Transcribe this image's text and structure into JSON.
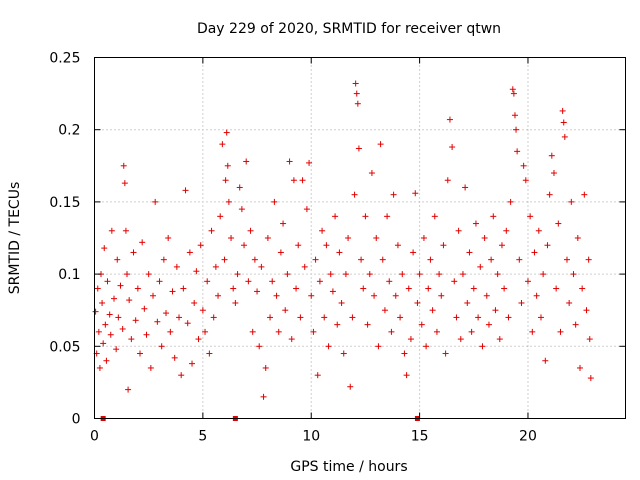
{
  "chart_data": {
    "type": "scatter",
    "title": "Day 229 of 2020, SRMTID for receiver qtwn",
    "xlabel": "GPS time / hours",
    "ylabel": "SRMTID / TECUs",
    "xlim": [
      0,
      24.5
    ],
    "ylim": [
      0,
      0.25
    ],
    "x_ticks": [
      0,
      5,
      10,
      15,
      20
    ],
    "x_tick_labels": [
      "0",
      "5",
      "10",
      "15",
      "20"
    ],
    "y_ticks": [
      0,
      0.05,
      0.1,
      0.15,
      0.2,
      0.25
    ],
    "y_tick_labels": [
      "0",
      "0.05",
      "0.1",
      "0.15",
      "0.2",
      "0.25"
    ],
    "grid": true,
    "marker": "plus",
    "color": "#e00000",
    "series": [
      {
        "name": "SRMTID",
        "points": [
          [
            0.05,
            0.074
          ],
          [
            0.1,
            0.045
          ],
          [
            0.15,
            0.09
          ],
          [
            0.2,
            0.06
          ],
          [
            0.25,
            0.035
          ],
          [
            0.3,
            0.1
          ],
          [
            0.35,
            0.08
          ],
          [
            0.4,
            0.052
          ],
          [
            0.45,
            0.118
          ],
          [
            0.5,
            0.065
          ],
          [
            0.55,
            0.04
          ],
          [
            0.6,
            0.095
          ],
          [
            0.7,
            0.072
          ],
          [
            0.75,
            0.058
          ],
          [
            0.8,
            0.13
          ],
          [
            0.9,
            0.083
          ],
          [
            1.0,
            0.048
          ],
          [
            1.05,
            0.11
          ],
          [
            1.1,
            0.07
          ],
          [
            1.2,
            0.092
          ],
          [
            1.3,
            0.062
          ],
          [
            1.35,
            0.175
          ],
          [
            1.4,
            0.163
          ],
          [
            1.45,
            0.13
          ],
          [
            1.5,
            0.1
          ],
          [
            1.55,
            0.02
          ],
          [
            1.6,
            0.082
          ],
          [
            1.7,
            0.055
          ],
          [
            1.8,
            0.115
          ],
          [
            1.9,
            0.068
          ],
          [
            2.0,
            0.09
          ],
          [
            2.1,
            0.045
          ],
          [
            2.2,
            0.122
          ],
          [
            2.3,
            0.076
          ],
          [
            2.4,
            0.058
          ],
          [
            2.5,
            0.1
          ],
          [
            2.6,
            0.035
          ],
          [
            2.7,
            0.085
          ],
          [
            2.8,
            0.15
          ],
          [
            2.9,
            0.067
          ],
          [
            3.0,
            0.095
          ],
          [
            3.1,
            0.05
          ],
          [
            3.2,
            0.11
          ],
          [
            3.3,
            0.073
          ],
          [
            3.4,
            0.125
          ],
          [
            3.5,
            0.06
          ],
          [
            3.6,
            0.088
          ],
          [
            3.7,
            0.042
          ],
          [
            3.8,
            0.105
          ],
          [
            3.9,
            0.07
          ],
          [
            4.0,
            0.03
          ],
          [
            4.1,
            0.09
          ],
          [
            4.2,
            0.158
          ],
          [
            4.3,
            0.066
          ],
          [
            4.4,
            0.115
          ],
          [
            4.5,
            0.038
          ],
          [
            4.6,
            0.08
          ],
          [
            4.7,
            0.102
          ],
          [
            4.8,
            0.055
          ],
          [
            4.9,
            0.12
          ],
          [
            5.0,
            0.075
          ],
          [
            5.1,
            0.06
          ],
          [
            5.2,
            0.095
          ],
          [
            5.3,
            0.045
          ],
          [
            5.4,
            0.13
          ],
          [
            5.5,
            0.07
          ],
          [
            5.6,
            0.105
          ],
          [
            5.7,
            0.085
          ],
          [
            5.8,
            0.14
          ],
          [
            5.9,
            0.19
          ],
          [
            6.0,
            0.11
          ],
          [
            6.05,
            0.165
          ],
          [
            6.1,
            0.198
          ],
          [
            6.15,
            0.175
          ],
          [
            6.2,
            0.15
          ],
          [
            6.3,
            0.125
          ],
          [
            6.4,
            0.09
          ],
          [
            6.5,
            0.08
          ],
          [
            6.6,
            0.1
          ],
          [
            6.7,
            0.16
          ],
          [
            6.8,
            0.145
          ],
          [
            6.9,
            0.12
          ],
          [
            7.0,
            0.178
          ],
          [
            7.1,
            0.095
          ],
          [
            7.2,
            0.13
          ],
          [
            7.3,
            0.06
          ],
          [
            7.4,
            0.11
          ],
          [
            7.5,
            0.088
          ],
          [
            7.6,
            0.05
          ],
          [
            7.7,
            0.105
          ],
          [
            7.8,
            0.015
          ],
          [
            7.9,
            0.035
          ],
          [
            8.0,
            0.125
          ],
          [
            8.1,
            0.07
          ],
          [
            8.2,
            0.095
          ],
          [
            8.3,
            0.15
          ],
          [
            8.4,
            0.085
          ],
          [
            8.5,
            0.06
          ],
          [
            8.6,
            0.115
          ],
          [
            8.7,
            0.135
          ],
          [
            8.8,
            0.075
          ],
          [
            8.9,
            0.1
          ],
          [
            9.0,
            0.178
          ],
          [
            9.1,
            0.055
          ],
          [
            9.2,
            0.165
          ],
          [
            9.3,
            0.09
          ],
          [
            9.4,
            0.12
          ],
          [
            9.5,
            0.07
          ],
          [
            9.6,
            0.165
          ],
          [
            9.7,
            0.105
          ],
          [
            9.8,
            0.145
          ],
          [
            9.9,
            0.177
          ],
          [
            10.0,
            0.085
          ],
          [
            10.1,
            0.06
          ],
          [
            10.2,
            0.11
          ],
          [
            10.3,
            0.03
          ],
          [
            10.4,
            0.095
          ],
          [
            10.5,
            0.13
          ],
          [
            10.6,
            0.07
          ],
          [
            10.7,
            0.12
          ],
          [
            10.8,
            0.05
          ],
          [
            10.9,
            0.1
          ],
          [
            11.0,
            0.088
          ],
          [
            11.1,
            0.14
          ],
          [
            11.2,
            0.065
          ],
          [
            11.3,
            0.115
          ],
          [
            11.4,
            0.08
          ],
          [
            11.5,
            0.045
          ],
          [
            11.6,
            0.1
          ],
          [
            11.7,
            0.125
          ],
          [
            11.8,
            0.022
          ],
          [
            11.9,
            0.07
          ],
          [
            12.0,
            0.155
          ],
          [
            12.05,
            0.232
          ],
          [
            12.1,
            0.225
          ],
          [
            12.15,
            0.218
          ],
          [
            12.2,
            0.187
          ],
          [
            12.3,
            0.11
          ],
          [
            12.4,
            0.09
          ],
          [
            12.5,
            0.14
          ],
          [
            12.6,
            0.065
          ],
          [
            12.7,
            0.1
          ],
          [
            12.8,
            0.17
          ],
          [
            12.9,
            0.085
          ],
          [
            13.0,
            0.125
          ],
          [
            13.1,
            0.05
          ],
          [
            13.2,
            0.19
          ],
          [
            13.3,
            0.11
          ],
          [
            13.4,
            0.075
          ],
          [
            13.5,
            0.14
          ],
          [
            13.6,
            0.095
          ],
          [
            13.7,
            0.06
          ],
          [
            13.8,
            0.155
          ],
          [
            13.9,
            0.085
          ],
          [
            14.0,
            0.12
          ],
          [
            14.1,
            0.07
          ],
          [
            14.2,
            0.1
          ],
          [
            14.3,
            0.045
          ],
          [
            14.4,
            0.03
          ],
          [
            14.5,
            0.09
          ],
          [
            14.6,
            0.055
          ],
          [
            14.7,
            0.115
          ],
          [
            14.8,
            0.156
          ],
          [
            14.9,
            0.08
          ],
          [
            15.0,
            0.1
          ],
          [
            15.1,
            0.065
          ],
          [
            15.2,
            0.125
          ],
          [
            15.3,
            0.05
          ],
          [
            15.4,
            0.09
          ],
          [
            15.5,
            0.11
          ],
          [
            15.6,
            0.075
          ],
          [
            15.7,
            0.14
          ],
          [
            15.8,
            0.06
          ],
          [
            15.9,
            0.1
          ],
          [
            16.0,
            0.085
          ],
          [
            16.1,
            0.12
          ],
          [
            16.2,
            0.045
          ],
          [
            16.3,
            0.165
          ],
          [
            16.4,
            0.207
          ],
          [
            16.5,
            0.188
          ],
          [
            16.6,
            0.095
          ],
          [
            16.7,
            0.07
          ],
          [
            16.8,
            0.13
          ],
          [
            16.9,
            0.055
          ],
          [
            17.0,
            0.1
          ],
          [
            17.1,
            0.16
          ],
          [
            17.2,
            0.08
          ],
          [
            17.3,
            0.115
          ],
          [
            17.4,
            0.06
          ],
          [
            17.5,
            0.09
          ],
          [
            17.6,
            0.135
          ],
          [
            17.7,
            0.07
          ],
          [
            17.8,
            0.105
          ],
          [
            17.9,
            0.05
          ],
          [
            18.0,
            0.125
          ],
          [
            18.1,
            0.085
          ],
          [
            18.2,
            0.065
          ],
          [
            18.3,
            0.11
          ],
          [
            18.4,
            0.14
          ],
          [
            18.5,
            0.075
          ],
          [
            18.6,
            0.1
          ],
          [
            18.7,
            0.055
          ],
          [
            18.8,
            0.12
          ],
          [
            18.9,
            0.09
          ],
          [
            19.0,
            0.13
          ],
          [
            19.1,
            0.07
          ],
          [
            19.2,
            0.15
          ],
          [
            19.3,
            0.228
          ],
          [
            19.35,
            0.225
          ],
          [
            19.4,
            0.21
          ],
          [
            19.45,
            0.2
          ],
          [
            19.5,
            0.185
          ],
          [
            19.6,
            0.11
          ],
          [
            19.7,
            0.08
          ],
          [
            19.8,
            0.175
          ],
          [
            19.9,
            0.165
          ],
          [
            20.0,
            0.095
          ],
          [
            20.1,
            0.14
          ],
          [
            20.2,
            0.06
          ],
          [
            20.3,
            0.115
          ],
          [
            20.4,
            0.085
          ],
          [
            20.5,
            0.13
          ],
          [
            20.6,
            0.07
          ],
          [
            20.7,
            0.1
          ],
          [
            20.8,
            0.04
          ],
          [
            20.9,
            0.12
          ],
          [
            21.0,
            0.155
          ],
          [
            21.1,
            0.182
          ],
          [
            21.2,
            0.17
          ],
          [
            21.3,
            0.09
          ],
          [
            21.4,
            0.135
          ],
          [
            21.5,
            0.06
          ],
          [
            21.6,
            0.213
          ],
          [
            21.65,
            0.205
          ],
          [
            21.7,
            0.195
          ],
          [
            21.8,
            0.11
          ],
          [
            21.9,
            0.08
          ],
          [
            22.0,
            0.15
          ],
          [
            22.1,
            0.1
          ],
          [
            22.2,
            0.065
          ],
          [
            22.3,
            0.125
          ],
          [
            22.4,
            0.035
          ],
          [
            22.5,
            0.09
          ],
          [
            22.6,
            0.155
          ],
          [
            22.7,
            0.075
          ],
          [
            22.8,
            0.11
          ],
          [
            22.85,
            0.055
          ],
          [
            22.9,
            0.028
          ],
          [
            0.4,
            0.0
          ],
          [
            6.5,
            0.0
          ],
          [
            14.9,
            0.0
          ]
        ]
      }
    ]
  }
}
